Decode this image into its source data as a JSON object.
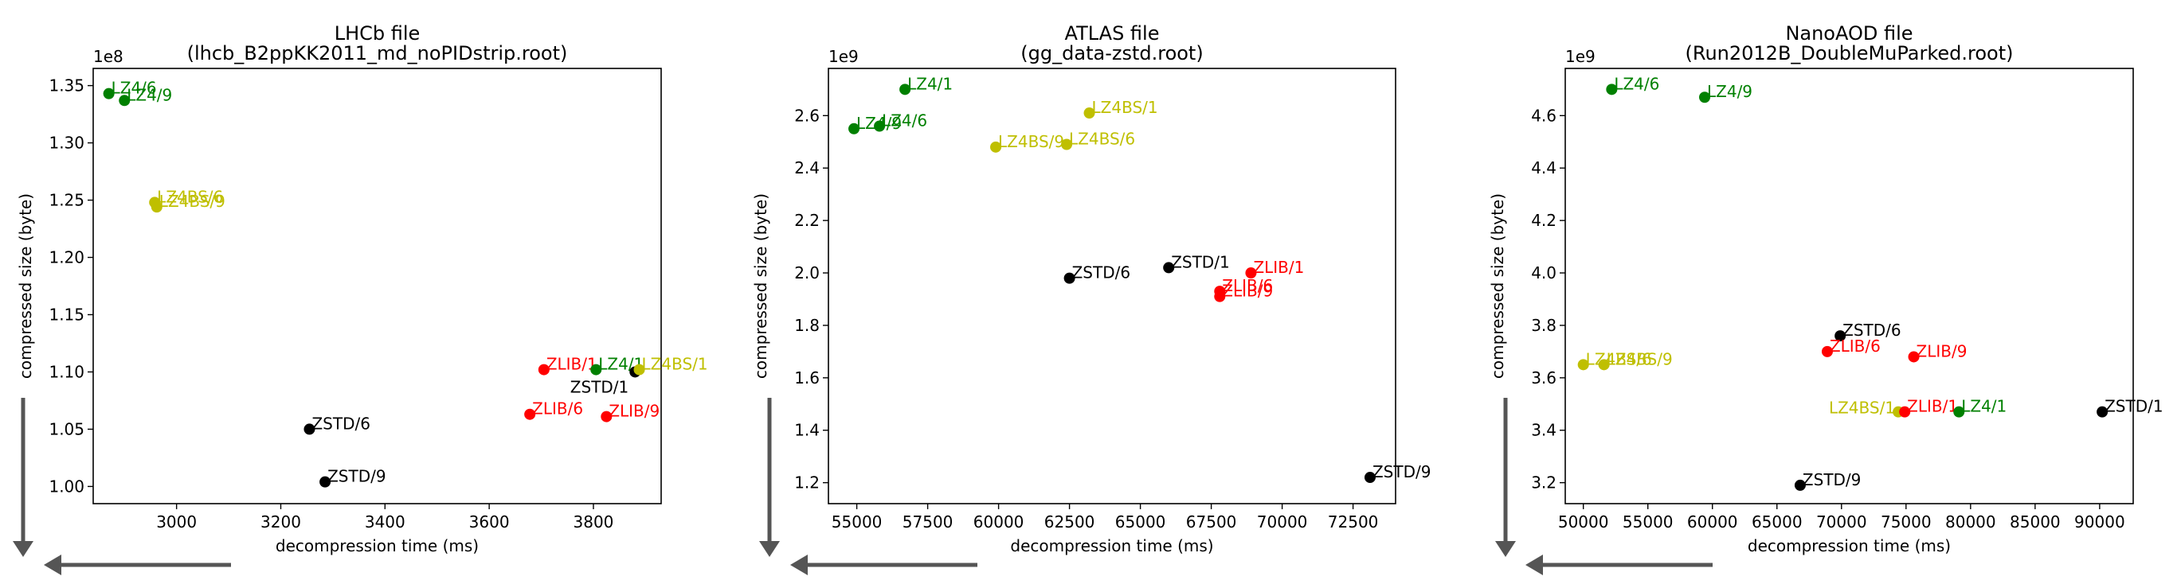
{
  "colors": {
    "LZ4": "#008000",
    "LZ4BS": "#bfbf00",
    "ZLIB": "#ff0000",
    "ZSTD": "#000000",
    "arrow": "#555555"
  },
  "chart_data": [
    {
      "type": "scatter",
      "title": [
        "LHCb file",
        "(lhcb_B2ppKK2011_md_noPIDstrip.root)"
      ],
      "xlabel": "decompression time (ms)",
      "ylabel": "compressed size (byte)",
      "y_offset_label": "1e8",
      "y_scale": 100000000,
      "xlim": [
        2840,
        3930
      ],
      "ylim": [
        0.985,
        1.365
      ],
      "xticks": [
        3000,
        3200,
        3400,
        3600,
        3800
      ],
      "xtick_labels": [
        "3000",
        "3200",
        "3400",
        "3600",
        "3800"
      ],
      "yticks": [
        1.0,
        1.05,
        1.1,
        1.15,
        1.2,
        1.25,
        1.3,
        1.35
      ],
      "ytick_labels": [
        "1.00",
        "1.05",
        "1.10",
        "1.15",
        "1.20",
        "1.25",
        "1.30",
        "1.35"
      ],
      "points": [
        {
          "label": "LZ4/6",
          "group": "LZ4",
          "x": 2870,
          "y": 1.343
        },
        {
          "label": "LZ4/9",
          "group": "LZ4",
          "x": 2900,
          "y": 1.337
        },
        {
          "label": "LZ4BS/6",
          "group": "LZ4BS",
          "x": 2958,
          "y": 1.248
        },
        {
          "label": "LZ4BS/9",
          "group": "LZ4BS",
          "x": 2962,
          "y": 1.244
        },
        {
          "label": "ZLIB/1",
          "group": "ZLIB",
          "x": 3705,
          "y": 1.102
        },
        {
          "label": "LZ4/1",
          "group": "LZ4",
          "x": 3805,
          "y": 1.102
        },
        {
          "label": "ZSTD/1",
          "group": "ZSTD",
          "x": 3880,
          "y": 1.1,
          "label_side": "below-left"
        },
        {
          "label": "LZ4BS/1",
          "group": "LZ4BS",
          "x": 3888,
          "y": 1.102
        },
        {
          "label": "ZLIB/6",
          "group": "ZLIB",
          "x": 3678,
          "y": 1.063
        },
        {
          "label": "ZLIB/9",
          "group": "ZLIB",
          "x": 3825,
          "y": 1.061
        },
        {
          "label": "ZSTD/6",
          "group": "ZSTD",
          "x": 3255,
          "y": 1.05
        },
        {
          "label": "ZSTD/9",
          "group": "ZSTD",
          "x": 3285,
          "y": 1.004
        }
      ]
    },
    {
      "type": "scatter",
      "title": [
        "ATLAS file",
        "(gg_data-zstd.root)"
      ],
      "xlabel": "decompression time (ms)",
      "ylabel": "compressed size (byte)",
      "y_offset_label": "1e9",
      "y_scale": 1000000000,
      "xlim": [
        54000,
        74000
      ],
      "ylim": [
        1.12,
        2.78
      ],
      "xticks": [
        55000,
        57500,
        60000,
        62500,
        65000,
        67500,
        70000,
        72500
      ],
      "xtick_labels": [
        "55000",
        "57500",
        "60000",
        "62500",
        "65000",
        "67500",
        "70000",
        "72500"
      ],
      "yticks": [
        1.2,
        1.4,
        1.6,
        1.8,
        2.0,
        2.2,
        2.4,
        2.6
      ],
      "ytick_labels": [
        "1.2",
        "1.4",
        "1.6",
        "1.8",
        "2.0",
        "2.2",
        "2.4",
        "2.6"
      ],
      "points": [
        {
          "label": "LZ4/1",
          "group": "LZ4",
          "x": 56700,
          "y": 2.7
        },
        {
          "label": "LZ4/9",
          "group": "LZ4",
          "x": 54900,
          "y": 2.55
        },
        {
          "label": "LZ4/6",
          "group": "LZ4",
          "x": 55800,
          "y": 2.56
        },
        {
          "label": "LZ4BS/1",
          "group": "LZ4BS",
          "x": 63200,
          "y": 2.61
        },
        {
          "label": "LZ4BS/9",
          "group": "LZ4BS",
          "x": 59900,
          "y": 2.48
        },
        {
          "label": "LZ4BS/6",
          "group": "LZ4BS",
          "x": 62400,
          "y": 2.49
        },
        {
          "label": "ZSTD/6",
          "group": "ZSTD",
          "x": 62500,
          "y": 1.98
        },
        {
          "label": "ZSTD/1",
          "group": "ZSTD",
          "x": 66000,
          "y": 2.02
        },
        {
          "label": "ZLIB/1",
          "group": "ZLIB",
          "x": 68900,
          "y": 2.0
        },
        {
          "label": "ZLIB/6",
          "group": "ZLIB",
          "x": 67800,
          "y": 1.93
        },
        {
          "label": "ZLIB/9",
          "group": "ZLIB",
          "x": 67800,
          "y": 1.91
        },
        {
          "label": "ZSTD/9",
          "group": "ZSTD",
          "x": 73100,
          "y": 1.22
        }
      ]
    },
    {
      "type": "scatter",
      "title": [
        "NanoAOD file",
        "(Run2012B_DoubleMuParked.root)"
      ],
      "xlabel": "decompression time (ms)",
      "ylabel": "compressed size (byte)",
      "y_offset_label": "1e9",
      "y_scale": 1000000000,
      "xlim": [
        48600,
        92600
      ],
      "ylim": [
        3.12,
        4.78
      ],
      "xticks": [
        50000,
        55000,
        60000,
        65000,
        70000,
        75000,
        80000,
        85000,
        90000
      ],
      "xtick_labels": [
        "50000",
        "55000",
        "60000",
        "65000",
        "70000",
        "75000",
        "80000",
        "85000",
        "90000"
      ],
      "yticks": [
        3.2,
        3.4,
        3.6,
        3.8,
        4.0,
        4.2,
        4.4,
        4.6
      ],
      "ytick_labels": [
        "3.2",
        "3.4",
        "3.6",
        "3.8",
        "4.0",
        "4.2",
        "4.4",
        "4.6"
      ],
      "points": [
        {
          "label": "LZ4/6",
          "group": "LZ4",
          "x": 52200,
          "y": 4.7
        },
        {
          "label": "LZ4/9",
          "group": "LZ4",
          "x": 59400,
          "y": 4.67
        },
        {
          "label": "LZ4BS/6",
          "group": "LZ4BS",
          "x": 50000,
          "y": 3.65
        },
        {
          "label": "LZ4BS/9",
          "group": "LZ4BS",
          "x": 51600,
          "y": 3.65
        },
        {
          "label": "ZSTD/6",
          "group": "ZSTD",
          "x": 69900,
          "y": 3.76
        },
        {
          "label": "ZLIB/6",
          "group": "ZLIB",
          "x": 68900,
          "y": 3.7
        },
        {
          "label": "ZLIB/9",
          "group": "ZLIB",
          "x": 75600,
          "y": 3.68
        },
        {
          "label": "LZ4BS/1",
          "group": "LZ4BS",
          "x": 74400,
          "y": 3.47,
          "label_side": "left"
        },
        {
          "label": "ZLIB/1",
          "group": "ZLIB",
          "x": 74900,
          "y": 3.47
        },
        {
          "label": "LZ4/1",
          "group": "LZ4",
          "x": 79100,
          "y": 3.47
        },
        {
          "label": "ZSTD/1",
          "group": "ZSTD",
          "x": 90200,
          "y": 3.47
        },
        {
          "label": "ZSTD/9",
          "group": "ZSTD",
          "x": 66800,
          "y": 3.19
        }
      ]
    }
  ]
}
